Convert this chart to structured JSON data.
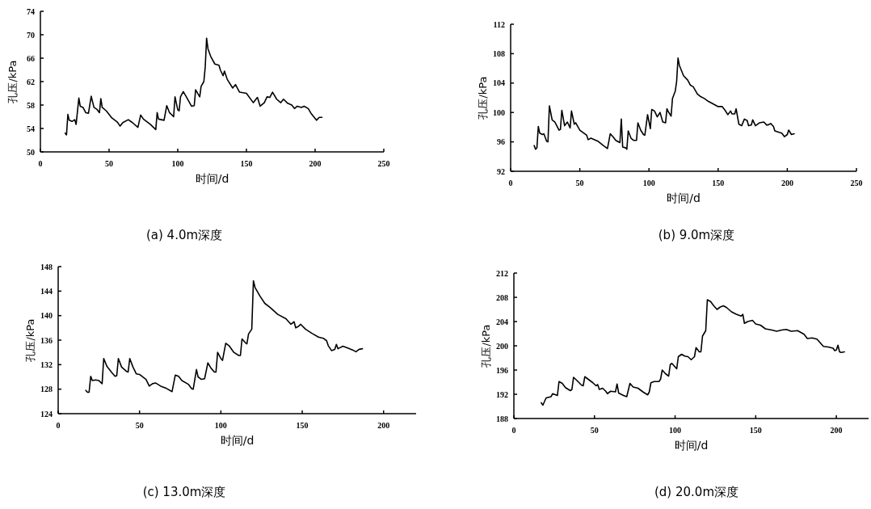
{
  "chart_data": [
    {
      "type": "line",
      "title": "(a) 4.0m深度",
      "xlabel": "时间/d",
      "ylabel": "孔压/kPa",
      "xlim": [
        0,
        250
      ],
      "xticks": [
        0,
        50,
        100,
        150,
        200,
        250
      ],
      "ylim": [
        50,
        74
      ],
      "yticks": [
        50,
        54,
        58,
        62,
        66,
        70,
        74
      ],
      "x": [
        18,
        19,
        20,
        21,
        23,
        25,
        26,
        28,
        29,
        31,
        33,
        35,
        37,
        39,
        41,
        43,
        44,
        45,
        48,
        52,
        56,
        58,
        60,
        64,
        67,
        71,
        73,
        75,
        80,
        84,
        85,
        86,
        90,
        92,
        94,
        97,
        98,
        100,
        101,
        102,
        104,
        106,
        110,
        112,
        113,
        116,
        117,
        119,
        120,
        121,
        122,
        124,
        127,
        130,
        131,
        133,
        134,
        136,
        140,
        142,
        145,
        150,
        155,
        158,
        160,
        163,
        165,
        167,
        169,
        172,
        175,
        177,
        180,
        183,
        185,
        187,
        190,
        192,
        195,
        197,
        199,
        201,
        203,
        205
      ],
      "values": [
        53.2,
        52.9,
        56.4,
        55.4,
        55.2,
        55.5,
        54.7,
        59.2,
        57.8,
        57.6,
        56.7,
        56.6,
        59.5,
        57.6,
        57.3,
        56.7,
        59.1,
        57.6,
        57.0,
        55.8,
        55.1,
        54.4,
        55.0,
        55.5,
        55.0,
        54.2,
        56.3,
        55.6,
        54.7,
        53.8,
        56.7,
        55.6,
        55.4,
        57.9,
        56.7,
        56.0,
        59.4,
        57.2,
        57.0,
        59.4,
        60.3,
        59.5,
        57.8,
        57.9,
        60.6,
        59.4,
        61.2,
        62.0,
        64.5,
        69.4,
        67.6,
        66.3,
        65.0,
        64.8,
        64.0,
        63.0,
        63.8,
        62.4,
        60.9,
        61.5,
        60.2,
        60.0,
        58.4,
        59.3,
        57.8,
        58.4,
        59.4,
        59.3,
        60.2,
        59.0,
        58.4,
        59.0,
        58.3,
        58.0,
        57.4,
        57.8,
        57.6,
        57.8,
        57.4,
        56.6,
        56.0,
        55.4,
        55.9,
        55.9
      ]
    },
    {
      "type": "line",
      "title": "(b) 9.0m深度",
      "xlabel": "时间/d",
      "ylabel": "孔压/kPa",
      "xlim": [
        0,
        250
      ],
      "xticks": [
        0,
        50,
        100,
        150,
        200,
        250
      ],
      "ylim": [
        92,
        112
      ],
      "yticks": [
        92,
        96,
        100,
        104,
        108,
        112
      ],
      "x": [
        17,
        18,
        19,
        20,
        21,
        23,
        24,
        26,
        27,
        28,
        30,
        32,
        35,
        36,
        37,
        39,
        41,
        43,
        44,
        46,
        47,
        50,
        55,
        56,
        58,
        63,
        67,
        70,
        72,
        74,
        76,
        79,
        80,
        81,
        83,
        84,
        85,
        87,
        89,
        91,
        92,
        94,
        96,
        97,
        99,
        101,
        102,
        104,
        106,
        108,
        110,
        112,
        113,
        114,
        116,
        117,
        119,
        120,
        121,
        122,
        125,
        128,
        130,
        132,
        135,
        137,
        140,
        143,
        146,
        150,
        153,
        155,
        157,
        159,
        160,
        162,
        163,
        165,
        167,
        169,
        171,
        172,
        174,
        175,
        177,
        180,
        183,
        185,
        186,
        188,
        190,
        191,
        194,
        196,
        198,
        200,
        201,
        203,
        205
      ],
      "values": [
        95.5,
        95.0,
        95.2,
        98.1,
        97.2,
        97.0,
        97.1,
        96.1,
        96.0,
        100.9,
        99.0,
        98.7,
        97.6,
        97.7,
        100.3,
        98.2,
        98.7,
        97.9,
        100.2,
        98.4,
        98.6,
        97.6,
        96.9,
        96.3,
        96.5,
        96.1,
        95.5,
        95.1,
        97.1,
        96.7,
        96.2,
        95.9,
        99.1,
        95.3,
        95.2,
        95.0,
        97.5,
        96.5,
        96.2,
        96.2,
        98.6,
        97.6,
        97.0,
        96.9,
        99.7,
        97.8,
        100.4,
        100.2,
        99.4,
        100.0,
        98.7,
        98.6,
        100.5,
        100.1,
        99.5,
        101.9,
        102.9,
        104.2,
        107.4,
        106.4,
        105.0,
        104.4,
        103.7,
        103.5,
        102.5,
        102.2,
        101.9,
        101.5,
        101.2,
        100.8,
        100.8,
        100.3,
        99.7,
        100.2,
        99.8,
        99.8,
        100.5,
        98.4,
        98.2,
        99.1,
        98.9,
        98.2,
        98.3,
        99.0,
        98.2,
        98.6,
        98.7,
        98.3,
        98.3,
        98.5,
        98.1,
        97.5,
        97.3,
        97.2,
        96.7,
        97.0,
        97.6,
        97.0,
        97.1
      ]
    },
    {
      "type": "line",
      "title": "(c) 13.0m深度",
      "xlabel": "时间/d",
      "ylabel": "孔压/kPa",
      "xlim": [
        0,
        220
      ],
      "xticks": [
        0,
        50,
        100,
        150,
        200
      ],
      "ylim": [
        124,
        148
      ],
      "yticks": [
        124,
        128,
        132,
        136,
        140,
        144,
        148
      ],
      "x": [
        17,
        18,
        19,
        20,
        21,
        23,
        25,
        27,
        28,
        30,
        33,
        35,
        36,
        37,
        39,
        42,
        43,
        44,
        46,
        48,
        50,
        54,
        56,
        58,
        60,
        63,
        66,
        70,
        72,
        74,
        76,
        80,
        82,
        83,
        85,
        86,
        88,
        90,
        92,
        94,
        96,
        97,
        98,
        100,
        101,
        103,
        105,
        108,
        111,
        112,
        113,
        115,
        116,
        117,
        119,
        120,
        121,
        124,
        127,
        130,
        135,
        140,
        143,
        145,
        146,
        148,
        149,
        152,
        156,
        160,
        163,
        165,
        166,
        168,
        170,
        171,
        172,
        175,
        178,
        181,
        183,
        185,
        187
      ],
      "values": [
        127.8,
        127.5,
        127.5,
        130.1,
        129.4,
        129.5,
        129.4,
        128.9,
        133.0,
        131.7,
        130.7,
        130.1,
        130.2,
        133.0,
        131.6,
        130.9,
        130.8,
        133.0,
        131.6,
        130.5,
        130.4,
        129.6,
        128.5,
        128.9,
        129.0,
        128.5,
        128.2,
        127.6,
        130.3,
        130.1,
        129.4,
        128.8,
        128.1,
        128.0,
        131.2,
        130.0,
        129.6,
        129.7,
        132.3,
        131.4,
        130.8,
        130.8,
        134.0,
        133.0,
        132.7,
        135.5,
        135.1,
        134.0,
        133.5,
        133.5,
        136.2,
        135.6,
        135.4,
        137.0,
        137.8,
        145.7,
        144.6,
        143.2,
        142.0,
        141.4,
        140.2,
        139.5,
        138.6,
        139.0,
        138.0,
        138.3,
        138.6,
        137.8,
        137.1,
        136.5,
        136.3,
        135.9,
        135.1,
        134.3,
        134.5,
        135.3,
        134.6,
        135.0,
        134.7,
        134.4,
        134.1,
        134.5,
        134.6
      ]
    },
    {
      "type": "line",
      "title": "(d) 20.0m深度",
      "xlabel": "时间/d",
      "ylabel": "孔压/kPa",
      "xlim": [
        0,
        220
      ],
      "xticks": [
        0,
        50,
        100,
        150,
        200
      ],
      "ylim": [
        188,
        212
      ],
      "yticks": [
        188,
        192,
        196,
        200,
        204,
        208,
        212
      ],
      "x": [
        17,
        18,
        19,
        20,
        23,
        24,
        26,
        27,
        28,
        30,
        32,
        35,
        36,
        37,
        39,
        42,
        43,
        44,
        46,
        49,
        51,
        52,
        53,
        55,
        57,
        58,
        60,
        63,
        64,
        65,
        68,
        70,
        72,
        74,
        77,
        80,
        83,
        84,
        85,
        87,
        90,
        91,
        92,
        94,
        96,
        97,
        98,
        100,
        101,
        102,
        104,
        106,
        108,
        110,
        112,
        113,
        115,
        116,
        117,
        119,
        120,
        122,
        124,
        126,
        128,
        130,
        132,
        135,
        138,
        141,
        142,
        143,
        145,
        148,
        150,
        153,
        156,
        160,
        163,
        166,
        169,
        172,
        176,
        180,
        182,
        185,
        188,
        190,
        192,
        195,
        198,
        199,
        200,
        201,
        202,
        203,
        205
      ],
      "values": [
        190.6,
        190.2,
        190.8,
        191.4,
        191.6,
        192.1,
        191.9,
        191.8,
        194.1,
        193.8,
        193.1,
        192.6,
        192.8,
        194.8,
        194.3,
        193.5,
        193.4,
        194.9,
        194.5,
        193.9,
        193.4,
        193.6,
        192.8,
        193.0,
        192.5,
        192.1,
        192.5,
        192.4,
        193.7,
        192.2,
        191.8,
        191.6,
        193.8,
        193.2,
        193.0,
        192.4,
        191.9,
        192.4,
        193.9,
        194.1,
        194.1,
        194.5,
        196.0,
        195.4,
        195.0,
        196.9,
        197.1,
        196.5,
        196.2,
        198.2,
        198.6,
        198.3,
        198.2,
        197.7,
        198.2,
        199.7,
        199.0,
        199.0,
        201.6,
        202.5,
        207.6,
        207.3,
        206.6,
        206.0,
        206.4,
        206.6,
        206.3,
        205.6,
        205.2,
        204.9,
        205.2,
        203.7,
        204.0,
        204.2,
        203.6,
        203.4,
        202.8,
        202.6,
        202.4,
        202.6,
        202.7,
        202.4,
        202.5,
        201.9,
        201.2,
        201.3,
        201.1,
        200.5,
        199.9,
        199.8,
        199.6,
        199.2,
        199.3,
        200.1,
        199.0,
        198.9,
        199.0
      ]
    }
  ]
}
